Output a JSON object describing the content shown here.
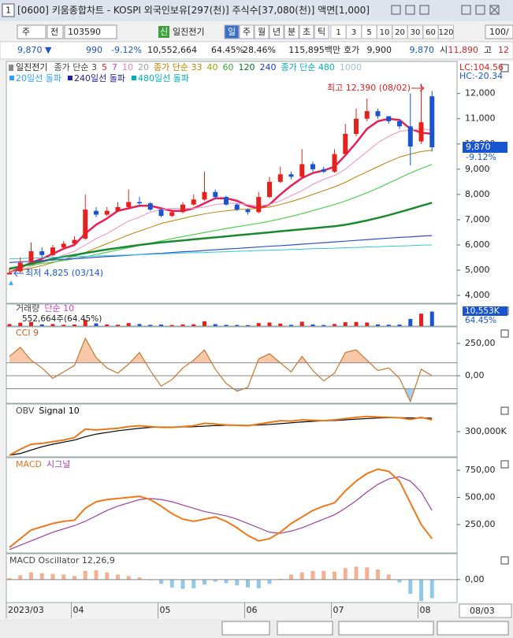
{
  "window": {
    "number": "1",
    "title": "[0600] 키움종합차트 - KOSPI 외국인보유[297(천)] 주식수[37,080(천)] 액면[1,000]"
  },
  "toolbar": {
    "period": "주",
    "prev": "전",
    "code": "103590",
    "badge": "신",
    "name": "일진전기",
    "intervals": [
      "일",
      "주",
      "월",
      "년",
      "분",
      "초",
      "틱"
    ],
    "counts": [
      "1",
      "3",
      "5",
      "10",
      "20",
      "30",
      "60",
      "120"
    ],
    "count_input": "100/"
  },
  "quote": {
    "price": "9,870 ▼",
    "change": "990",
    "change_rate": "-9.12%",
    "volume": "10,552,664",
    "volume_ratio": "64.45%",
    "turnover": "28.46%",
    "amount": "115,895백만",
    "ask_label": "호가",
    "ask": "9,900",
    "bid": "9,870",
    "open_label": "시",
    "open": "11,890",
    "high_label": "고",
    "high": "12"
  },
  "chart_data": [
    {
      "type": "candlestick",
      "title": "일진전기",
      "legend": [
        {
          "label": "종가 단순 3",
          "color": "#444444"
        },
        {
          "label": "5",
          "color": "#e02020"
        },
        {
          "label": "7",
          "color": "#d040d0"
        },
        {
          "label": "10",
          "color": "#f080a0"
        },
        {
          "label": "20",
          "color": "#a0a0a0"
        },
        {
          "label": "종가 단순 33",
          "color": "#c08000"
        },
        {
          "label": "40",
          "color": "#a0a000"
        },
        {
          "label": "60",
          "color": "#30b030"
        },
        {
          "label": "120",
          "color": "#007a20"
        },
        {
          "label": "240",
          "color": "#2040c0"
        },
        {
          "label": "종가 단순 480",
          "color": "#00b0c0"
        },
        {
          "label": "1000",
          "color": "#a0c0e0"
        }
      ],
      "signals": [
        {
          "label": "20일선 돌파",
          "color": "#30a0ff"
        },
        {
          "label": "240일선 돌파",
          "color": "#20209a"
        },
        {
          "label": "480일선 돌파",
          "color": "#00b0c0"
        }
      ],
      "categories": [
        "2023/03",
        null,
        null,
        null,
        null,
        null,
        "04",
        null,
        null,
        null,
        null,
        null,
        null,
        null,
        "05",
        null,
        null,
        null,
        null,
        null,
        null,
        null,
        "06",
        null,
        null,
        null,
        null,
        null,
        null,
        null,
        "07",
        null,
        null,
        null,
        null,
        null,
        null,
        null,
        "08",
        null
      ],
      "open": [
        4830,
        4950,
        5350,
        5750,
        5600,
        5900,
        6050,
        6250,
        7350,
        7200,
        7350,
        7500,
        7700,
        7650,
        7400,
        7150,
        7300,
        7600,
        7800,
        8100,
        7900,
        7600,
        7400,
        7300,
        7900,
        8500,
        8800,
        8700,
        9200,
        9000,
        8900,
        9600,
        10400,
        11000,
        11300,
        11100,
        10900,
        10700,
        10100,
        11890
      ],
      "high": [
        5100,
        5500,
        6100,
        5900,
        6000,
        6150,
        6350,
        8000,
        7500,
        7500,
        7700,
        8200,
        7900,
        7700,
        7450,
        7400,
        7700,
        8000,
        8900,
        8200,
        7950,
        7650,
        7450,
        8100,
        8700,
        9100,
        8900,
        9800,
        9300,
        9100,
        9800,
        10800,
        11400,
        11800,
        11400,
        11100,
        11000,
        12000,
        12390,
        12100
      ],
      "low": [
        4825,
        4900,
        5300,
        5500,
        5550,
        5850,
        6000,
        6200,
        7100,
        7150,
        7300,
        7450,
        7550,
        7350,
        7100,
        7100,
        7250,
        7550,
        7750,
        7800,
        7550,
        7350,
        7200,
        7250,
        7850,
        8450,
        8600,
        8650,
        8900,
        8850,
        8850,
        9550,
        10300,
        10900,
        11000,
        10800,
        10600,
        9150,
        10000,
        9700
      ],
      "close": [
        4900,
        5300,
        5750,
        5600,
        5900,
        6050,
        6200,
        7400,
        7200,
        7350,
        7500,
        7700,
        7650,
        7400,
        7150,
        7300,
        7600,
        7800,
        8100,
        7900,
        7600,
        7400,
        7300,
        7900,
        8500,
        8800,
        8700,
        9200,
        9000,
        8900,
        9600,
        10400,
        11000,
        11300,
        11100,
        10900,
        10700,
        9900,
        10860,
        9870
      ],
      "up_color": "#e8201c",
      "down_color": "#1a55d0",
      "series": [
        {
          "color": "#e8205a",
          "values": [
            4900,
            5100,
            5300,
            5450,
            5650,
            5850,
            6000,
            6450,
            6800,
            7050,
            7350,
            7450,
            7550,
            7550,
            7450,
            7350,
            7350,
            7450,
            7650,
            7850,
            7850,
            7750,
            7550,
            7450,
            7600,
            8000,
            8350,
            8650,
            8850,
            8950,
            9100,
            9550,
            10050,
            10600,
            10900,
            11000,
            10950,
            10600,
            10450,
            10400
          ]
        },
        {
          "color": "#f0a0c8",
          "values": [
            4900,
            5000,
            5150,
            5300,
            5450,
            5600,
            5750,
            6000,
            6250,
            6450,
            6700,
            6950,
            7100,
            7300,
            7400,
            7450,
            7450,
            7450,
            7500,
            7600,
            7650,
            7650,
            7600,
            7550,
            7600,
            7750,
            7950,
            8150,
            8400,
            8600,
            8750,
            9000,
            9350,
            9700,
            10050,
            10300,
            10500,
            10550,
            10600,
            10550
          ]
        },
        {
          "color": "#c08000",
          "values": [
            4950,
            5000,
            5080,
            5180,
            5300,
            5420,
            5550,
            5700,
            5880,
            6050,
            6220,
            6400,
            6550,
            6700,
            6850,
            6950,
            7050,
            7150,
            7230,
            7300,
            7350,
            7400,
            7420,
            7450,
            7500,
            7600,
            7720,
            7850,
            8000,
            8150,
            8300,
            8480,
            8700,
            8900,
            9100,
            9300,
            9480,
            9600,
            9700,
            9750
          ]
        },
        {
          "color": "#50d050",
          "values": [
            5100,
            5150,
            5200,
            5260,
            5320,
            5380,
            5450,
            5530,
            5620,
            5710,
            5800,
            5890,
            5980,
            6070,
            6160,
            6250,
            6330,
            6410,
            6490,
            6570,
            6650,
            6720,
            6790,
            6860,
            6940,
            7030,
            7130,
            7240,
            7360,
            7480,
            7600,
            7740,
            7900,
            8070,
            8250,
            8450,
            8650,
            8850,
            9030,
            9190
          ]
        },
        {
          "color": "#1a8a30",
          "values": [
            5050,
            5150,
            5250,
            5350,
            5450,
            5530,
            5600,
            5680,
            5750,
            5820,
            5880,
            5940,
            6000,
            6050,
            6100,
            6140,
            6180,
            6220,
            6260,
            6300,
            6340,
            6380,
            6420,
            6460,
            6500,
            6540,
            6580,
            6620,
            6660,
            6700,
            6740,
            6800,
            6880,
            6970,
            7070,
            7180,
            7300,
            7420,
            7550,
            7670
          ]
        },
        {
          "color": "#3050d0",
          "values": [
            5300,
            5330,
            5350,
            5380,
            5400,
            5430,
            5460,
            5480,
            5510,
            5540,
            5560,
            5590,
            5620,
            5650,
            5670,
            5700,
            5730,
            5750,
            5780,
            5810,
            5840,
            5860,
            5890,
            5920,
            5950,
            5970,
            6000,
            6030,
            6060,
            6090,
            6120,
            6150,
            6180,
            6210,
            6240,
            6270,
            6300,
            6320,
            6350,
            6370
          ]
        },
        {
          "color": "#30c8d8",
          "values": [
            5450,
            5460,
            5480,
            5490,
            5510,
            5520,
            5530,
            5550,
            5560,
            5580,
            5590,
            5600,
            5620,
            5630,
            5650,
            5660,
            5680,
            5690,
            5700,
            5720,
            5730,
            5750,
            5760,
            5780,
            5790,
            5800,
            5820,
            5830,
            5850,
            5860,
            5870,
            5890,
            5900,
            5920,
            5930,
            5950,
            5960,
            5970,
            5990,
            6000
          ]
        }
      ],
      "ylim": [
        3690,
        13270
      ],
      "yticks": [
        {
          "value": 4000,
          "label": "4,000"
        },
        {
          "value": 5000,
          "label": "5,000"
        },
        {
          "value": 6000,
          "label": "6,000"
        },
        {
          "value": 7000,
          "label": "7,000"
        },
        {
          "value": 8000,
          "label": "8,000"
        },
        {
          "value": 9000,
          "label": "9,000"
        },
        {
          "value": 10000,
          "label": "10,000"
        },
        {
          "value": 11000,
          "label": "11,000"
        },
        {
          "value": 12000,
          "label": "12,000"
        }
      ],
      "annotations": [
        {
          "text": "최고 12,390 (08/02)",
          "color": "#e02020"
        },
        {
          "text": "최저 4,825 (03/14)",
          "color": "#1a55d0"
        }
      ],
      "side_labels": [
        {
          "text": "LC:104.56",
          "color": "#e02020"
        },
        {
          "text": "HC:-20.34",
          "color": "#1a55d0"
        }
      ],
      "current": {
        "price": "9,870",
        "rate": "-9.12%",
        "color": "#1a55d0"
      },
      "end_label": "08/03"
    },
    {
      "type": "volume",
      "legend": [
        {
          "label": "거래량",
          "color": "#444444"
        },
        {
          "label": "단순 10",
          "color": "#d040d0"
        }
      ],
      "subtitle": "552,664주(64.45%)",
      "current_label": "10,553K",
      "current_rate": "64.45%",
      "values": [
        1500,
        2500,
        3000,
        1200,
        1500,
        1000,
        1200,
        4500,
        2000,
        1200,
        1000,
        2200,
        1500,
        900,
        1100,
        800,
        1200,
        1300,
        3500,
        1400,
        900,
        800,
        700,
        2200,
        2600,
        1800,
        900,
        3200,
        1200,
        800,
        1500,
        2800,
        3000,
        2600,
        1200,
        1000,
        1100,
        5200,
        9000,
        10553
      ],
      "ylim": [
        0,
        16000
      ]
    },
    {
      "type": "cci",
      "legend": [
        {
          "label": "CCI 9",
          "color": "#c06020"
        }
      ],
      "color": "#c87830",
      "up_fill": "#f8c8a8",
      "down_fill": "#a8d0f0",
      "values": [
        150,
        220,
        120,
        60,
        -20,
        30,
        80,
        290,
        140,
        60,
        20,
        90,
        180,
        40,
        -80,
        -30,
        60,
        120,
        200,
        50,
        -60,
        -120,
        -90,
        130,
        170,
        100,
        30,
        150,
        40,
        -40,
        20,
        180,
        200,
        120,
        40,
        60,
        -20,
        -200,
        50,
        0
      ],
      "hlines": [
        100,
        0,
        -100
      ],
      "ylim": [
        -213,
        378
      ],
      "yticks": [
        {
          "value": 250,
          "label": "250,00"
        },
        {
          "value": 0,
          "label": "0,00"
        }
      ]
    },
    {
      "type": "line",
      "legend": [
        {
          "label": "OBV",
          "color": "#444444"
        },
        {
          "label": "Signal 10",
          "color": "#000000"
        }
      ],
      "series": [
        {
          "color": "#e87818",
          "values": [
            20000,
            90000,
            150000,
            160000,
            180000,
            200000,
            230000,
            330000,
            320000,
            330000,
            340000,
            360000,
            370000,
            360000,
            350000,
            350000,
            360000,
            370000,
            400000,
            390000,
            380000,
            375000,
            370000,
            390000,
            410000,
            430000,
            425000,
            440000,
            435000,
            430000,
            440000,
            455000,
            470000,
            480000,
            475000,
            470000,
            465000,
            445000,
            470000,
            440000
          ]
        },
        {
          "color": "#000000",
          "values": [
            20000,
            40000,
            80000,
            120000,
            150000,
            175000,
            200000,
            240000,
            270000,
            290000,
            310000,
            325000,
            340000,
            350000,
            355000,
            355000,
            356000,
            358000,
            365000,
            372000,
            375000,
            376000,
            375000,
            378000,
            385000,
            395000,
            405000,
            415000,
            423000,
            428000,
            432000,
            440000,
            448000,
            455000,
            462000,
            465000,
            466000,
            463000,
            463000,
            460000
          ]
        }
      ],
      "ylim": [
        0,
        628000
      ],
      "yticks": [
        {
          "value": 300000,
          "label": "300,000K"
        }
      ]
    },
    {
      "type": "line",
      "legend": [
        {
          "label": "MACD",
          "color": "#e87818"
        },
        {
          "label": "시그널",
          "color": "#a040a0"
        }
      ],
      "series": [
        {
          "color": "#f07818",
          "values": [
            40,
            120,
            200,
            230,
            260,
            280,
            290,
            400,
            460,
            480,
            490,
            500,
            510,
            480,
            420,
            350,
            300,
            280,
            300,
            320,
            280,
            220,
            150,
            100,
            120,
            180,
            260,
            320,
            380,
            420,
            450,
            560,
            650,
            720,
            760,
            740,
            650,
            450,
            250,
            120
          ]
        },
        {
          "color": "#a040a0",
          "values": [
            20,
            60,
            100,
            140,
            180,
            210,
            240,
            280,
            330,
            380,
            420,
            450,
            480,
            490,
            480,
            460,
            430,
            400,
            370,
            350,
            330,
            300,
            260,
            220,
            180,
            170,
            190,
            220,
            260,
            300,
            340,
            400,
            470,
            550,
            620,
            670,
            690,
            650,
            550,
            380
          ]
        }
      ],
      "ylim": [
        -11,
        866
      ],
      "yticks": [
        {
          "value": 750,
          "label": "750,00"
        },
        {
          "value": 500,
          "label": "500,00"
        },
        {
          "value": 250,
          "label": "250,00"
        }
      ]
    },
    {
      "type": "oscillator",
      "legend": [
        {
          "label": "MACD Oscillator 12,26,9",
          "color": "#444444"
        }
      ],
      "up_color": "#f4b090",
      "down_color": "#90c8e8",
      "values": [
        20,
        60,
        100,
        90,
        80,
        70,
        50,
        120,
        130,
        100,
        70,
        50,
        30,
        -10,
        -60,
        -110,
        -130,
        -120,
        -70,
        -30,
        -50,
        -80,
        -110,
        -120,
        -60,
        10,
        70,
        100,
        120,
        120,
        110,
        160,
        180,
        170,
        140,
        70,
        -40,
        -200,
        -300,
        -260
      ],
      "ylim": [
        -320,
        360
      ],
      "yticks": [
        {
          "value": 0,
          "label": "0,00"
        }
      ]
    }
  ]
}
